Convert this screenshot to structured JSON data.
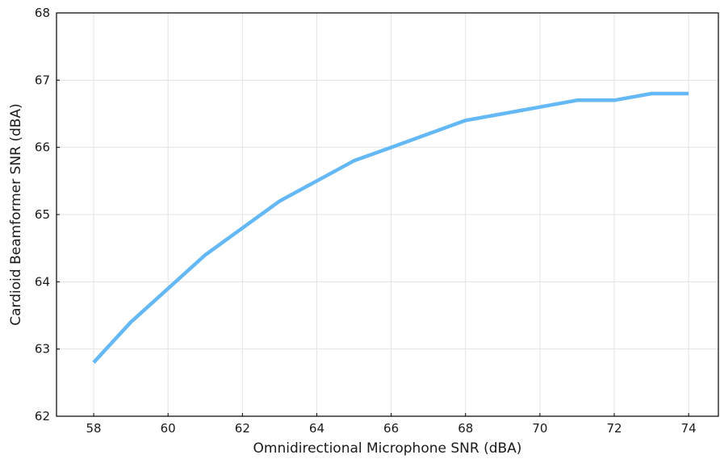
{
  "chart_data": {
    "type": "line",
    "title": "",
    "xlabel": "Omnidirectional Microphone SNR (dBA)",
    "ylabel": "Cardioid Beamformer SNR (dBA)",
    "xlim": [
      57,
      74.8
    ],
    "ylim": [
      62,
      68
    ],
    "xticks": [
      58,
      60,
      62,
      64,
      66,
      68,
      70,
      72,
      74
    ],
    "yticks": [
      62,
      63,
      64,
      65,
      66,
      67,
      68
    ],
    "grid": true,
    "legend": "none",
    "series": [
      {
        "color": "#63b8f5",
        "x": [
          58,
          59,
          60,
          61,
          62,
          63,
          64,
          65,
          66,
          67,
          68,
          69,
          70,
          71,
          72,
          73,
          74
        ],
        "y": [
          62.8,
          63.4,
          63.9,
          64.4,
          64.8,
          65.2,
          65.5,
          65.8,
          66.0,
          66.2,
          66.4,
          66.5,
          66.6,
          66.7,
          66.7,
          66.8,
          66.8
        ]
      }
    ]
  }
}
